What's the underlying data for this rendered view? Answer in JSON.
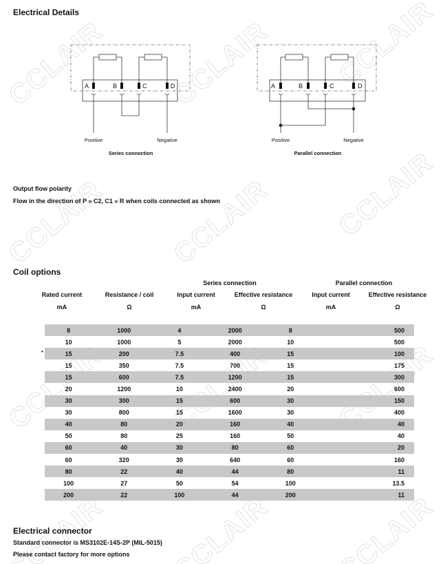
{
  "watermark": "CCLAIR",
  "electrical_details": {
    "title": "Electrical Details",
    "pins": [
      "A",
      "B",
      "C",
      "D"
    ],
    "series": {
      "positive": "Positive",
      "negative": "Negative",
      "caption": "Series connection"
    },
    "parallel": {
      "positive": "Positive",
      "negative": "Negative",
      "caption": "Parallel connection"
    }
  },
  "polarity": {
    "title": "Output flow polarity",
    "text": "Flow in the direction of P » C2, C1 » R when coils connected as shown"
  },
  "coil_options": {
    "title": "Coil options",
    "group_headers": [
      "Series connection",
      "Parallel connection"
    ],
    "columns": [
      {
        "label": "Rated current",
        "unit": "mA"
      },
      {
        "label": "Resistance / coil",
        "unit": "Ω"
      },
      {
        "label": "Input current",
        "unit": "mA"
      },
      {
        "label": "Effective resistance",
        "unit": "Ω"
      },
      {
        "label": "Input current",
        "unit": "mA"
      },
      {
        "label": "Effective resistance",
        "unit": "Ω"
      }
    ],
    "rows": [
      [
        "8",
        "1000",
        "4",
        "2000",
        "8",
        "500"
      ],
      [
        "10",
        "1000",
        "5",
        "2000",
        "10",
        "500"
      ],
      [
        "15",
        "200",
        "7.5",
        "400",
        "15",
        "100"
      ],
      [
        "15",
        "350",
        "7.5",
        "700",
        "15",
        "175"
      ],
      [
        "15",
        "600",
        "7.5",
        "1200",
        "15",
        "300"
      ],
      [
        "20",
        "1200",
        "10",
        "2400",
        "20",
        "600"
      ],
      [
        "30",
        "300",
        "15",
        "600",
        "30",
        "150"
      ],
      [
        "30",
        "800",
        "15",
        "1600",
        "30",
        "400"
      ],
      [
        "40",
        "80",
        "20",
        "160",
        "40",
        "40"
      ],
      [
        "50",
        "80",
        "25",
        "160",
        "50",
        "40"
      ],
      [
        "60",
        "40",
        "30",
        "80",
        "60",
        "20"
      ],
      [
        "60",
        "320",
        "30",
        "640",
        "60",
        "160"
      ],
      [
        "80",
        "22",
        "40",
        "44",
        "80",
        "11"
      ],
      [
        "100",
        "27",
        "50",
        "54",
        "100",
        "13.5"
      ],
      [
        "200",
        "22",
        "100",
        "44",
        "200",
        "11"
      ]
    ],
    "row_shade_color": "#c8c8c8"
  },
  "connector": {
    "title": "Electrical connector",
    "line1": "Standard connector is MS3102E-14S-2P (MIL-5015)",
    "line2": "Please contact factory for more options"
  }
}
